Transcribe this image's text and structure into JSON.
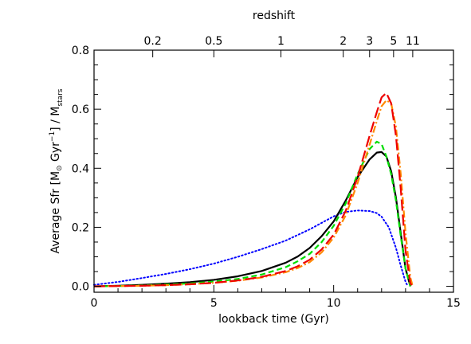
{
  "chart_data": {
    "type": "line",
    "title": "",
    "xlabel": "lookback time (Gyr)",
    "ylabel": {
      "main": "Average Sfr [M",
      "sun_symbol": "⊙",
      "units": " Gyr",
      "exponent": "−1",
      "close": "] / M",
      "subscript": "stars"
    },
    "top_axis_label": "redshift",
    "xlim": [
      0,
      15
    ],
    "ylim": [
      -0.02,
      0.8
    ],
    "xticks": [
      0,
      5,
      10,
      15
    ],
    "yticks": [
      0.0,
      0.2,
      0.4,
      0.6,
      0.8
    ],
    "x_tick_labels": [
      "0",
      "5",
      "10",
      "15"
    ],
    "y_tick_labels": [
      "0.0",
      "0.2",
      "0.4",
      "0.6",
      "0.8"
    ],
    "top_ticks": [
      {
        "label": "0.2",
        "x": 2.45
      },
      {
        "label": "0.5",
        "x": 5.0
      },
      {
        "label": "1",
        "x": 7.8
      },
      {
        "label": "2",
        "x": 10.4
      },
      {
        "label": "3",
        "x": 11.5
      },
      {
        "label": "5",
        "x": 12.5
      },
      {
        "label": "11",
        "x": 13.3
      }
    ],
    "grid": false,
    "series": [
      {
        "color": "#0000ff",
        "style": "dotted",
        "x": [
          0,
          1,
          2,
          3,
          4,
          5,
          6,
          7,
          8,
          9,
          9.5,
          10,
          10.5,
          11,
          11.5,
          11.8,
          12,
          12.3,
          12.6,
          12.8,
          13.0,
          13.1
        ],
        "y": [
          0.005,
          0.015,
          0.028,
          0.042,
          0.058,
          0.077,
          0.1,
          0.126,
          0.155,
          0.193,
          0.215,
          0.237,
          0.252,
          0.257,
          0.255,
          0.248,
          0.236,
          0.2,
          0.13,
          0.07,
          0.015,
          0.0
        ]
      },
      {
        "color": "#000000",
        "style": "solid",
        "x": [
          0,
          1,
          2,
          3,
          4,
          5,
          6,
          7,
          8,
          8.5,
          9,
          9.5,
          10,
          10.5,
          11,
          11.5,
          11.8,
          12,
          12.2,
          12.4,
          12.6,
          12.8,
          13.0,
          13.2
        ],
        "y": [
          0.0,
          0.002,
          0.005,
          0.009,
          0.014,
          0.022,
          0.034,
          0.052,
          0.08,
          0.101,
          0.13,
          0.17,
          0.22,
          0.29,
          0.37,
          0.43,
          0.453,
          0.455,
          0.44,
          0.39,
          0.3,
          0.18,
          0.06,
          0.0
        ]
      },
      {
        "color": "#00dd00",
        "style": "dashed",
        "x": [
          0,
          1,
          2,
          3,
          4,
          5,
          6,
          7,
          8,
          8.5,
          9,
          9.5,
          10,
          10.5,
          11,
          11.5,
          11.8,
          12.0,
          12.2,
          12.4,
          12.6,
          12.8,
          13.0,
          13.2
        ],
        "y": [
          0.0,
          0.001,
          0.003,
          0.006,
          0.01,
          0.016,
          0.025,
          0.04,
          0.065,
          0.085,
          0.11,
          0.15,
          0.205,
          0.28,
          0.38,
          0.465,
          0.49,
          0.482,
          0.44,
          0.38,
          0.29,
          0.17,
          0.06,
          0.0
        ]
      },
      {
        "color": "#ff8800",
        "style": "dash-dot",
        "x": [
          0,
          1,
          2,
          3,
          4,
          5,
          6,
          7,
          8,
          8.5,
          9,
          9.5,
          10,
          10.5,
          11,
          11.5,
          11.8,
          12.0,
          12.2,
          12.4,
          12.6,
          12.8,
          13.0,
          13.2,
          13.3
        ],
        "y": [
          0.0,
          0.001,
          0.002,
          0.004,
          0.007,
          0.012,
          0.019,
          0.03,
          0.048,
          0.062,
          0.082,
          0.115,
          0.165,
          0.24,
          0.35,
          0.48,
          0.56,
          0.61,
          0.63,
          0.62,
          0.54,
          0.38,
          0.18,
          0.03,
          0.0
        ]
      },
      {
        "color": "#ee0000",
        "style": "long-dashed",
        "x": [
          0,
          1,
          2,
          3,
          4,
          5,
          6,
          7,
          8,
          8.5,
          9,
          9.5,
          10,
          10.5,
          11,
          11.5,
          11.8,
          12.0,
          12.2,
          12.4,
          12.6,
          12.8,
          13.0,
          13.2,
          13.3
        ],
        "y": [
          0.0,
          0.001,
          0.002,
          0.004,
          0.007,
          0.012,
          0.02,
          0.032,
          0.052,
          0.068,
          0.09,
          0.125,
          0.175,
          0.255,
          0.37,
          0.51,
          0.59,
          0.64,
          0.655,
          0.62,
          0.51,
          0.33,
          0.12,
          0.01,
          0.0
        ]
      }
    ]
  }
}
